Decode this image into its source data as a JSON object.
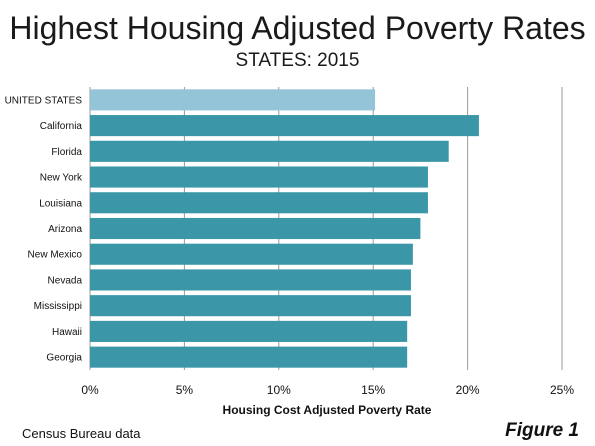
{
  "chart_data": {
    "type": "bar",
    "orientation": "horizontal",
    "title": "Highest Housing Adjusted Poverty Rates",
    "subtitle": "STATES: 2015",
    "xlabel": "Housing Cost Adjusted Poverty Rate",
    "ylabel": "",
    "categories": [
      "UNITED STATES",
      "California",
      "Florida",
      "New York",
      "Louisiana",
      "Arizona",
      "New Mexico",
      "Nevada",
      "Mississippi",
      "Hawaii",
      "Georgia"
    ],
    "values": [
      15.1,
      20.6,
      19.0,
      17.9,
      17.9,
      17.5,
      17.1,
      17.0,
      17.0,
      16.8,
      16.8
    ],
    "xlim": [
      0,
      25
    ],
    "xticks": [
      0,
      5,
      10,
      15,
      20,
      25
    ],
    "xtick_labels": [
      "0%",
      "5%",
      "10%",
      "15%",
      "20%",
      "25%"
    ],
    "grid": true,
    "colors": {
      "highlight": "#93c4d8",
      "bar": "#3b97a8"
    }
  },
  "source": "Census Bureau data",
  "figure_label": "Figure 1"
}
